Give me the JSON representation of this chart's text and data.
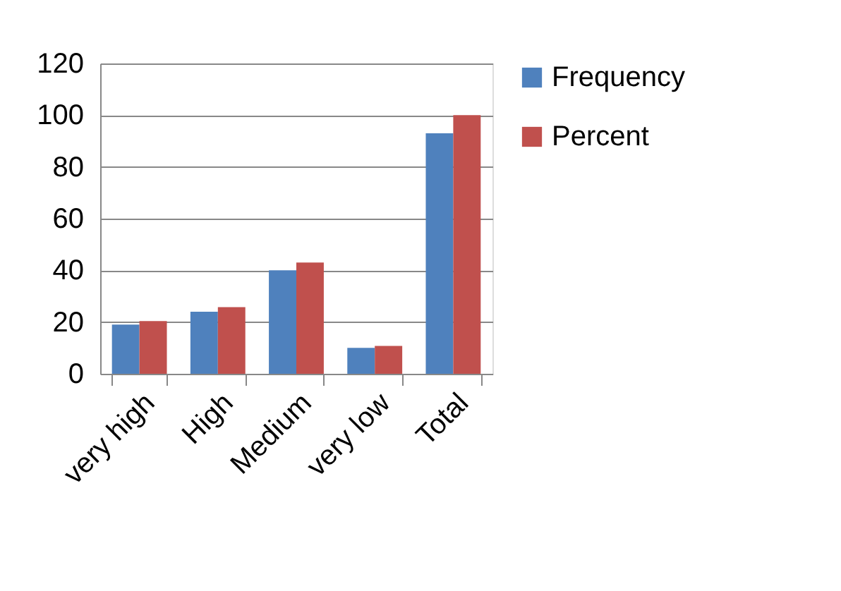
{
  "chart_data": {
    "type": "bar",
    "categories": [
      "very high",
      "High",
      "Medium",
      "very low",
      "Total"
    ],
    "series": [
      {
        "name": "Frequency",
        "color": "#4f81bd",
        "values": [
          19,
          24,
          40,
          10,
          93
        ]
      },
      {
        "name": "Percent",
        "color": "#c0504d",
        "values": [
          20.4,
          25.8,
          43,
          10.8,
          100
        ]
      }
    ],
    "ylim": [
      0,
      120
    ],
    "yticks": [
      0,
      20,
      40,
      60,
      80,
      100,
      120
    ],
    "grid": "y",
    "legend": "right"
  }
}
